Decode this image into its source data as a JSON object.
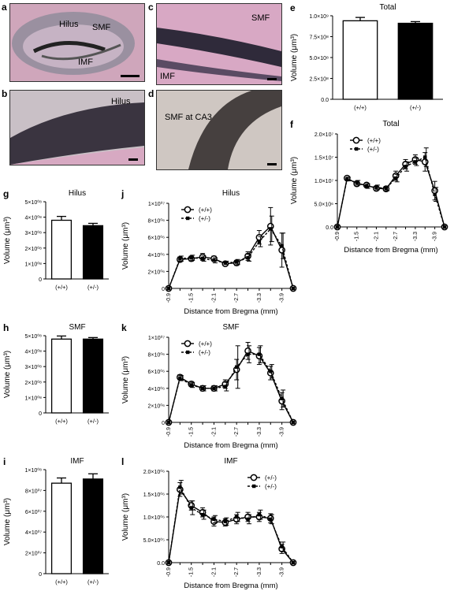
{
  "panels": {
    "a": {
      "letter": "a",
      "labels": {
        "hilus": "Hilus",
        "smf": "SMF",
        "imf": "IMF"
      }
    },
    "b": {
      "letter": "b",
      "labels": {
        "hilus": "Hilus"
      }
    },
    "c": {
      "letter": "c",
      "labels": {
        "smf": "SMF",
        "imf": "IMF"
      }
    },
    "d": {
      "letter": "d",
      "labels": {
        "smf_ca3": "SMF at CA3"
      }
    }
  },
  "colors": {
    "wt": "#ffffff",
    "het": "#000000",
    "stroke": "#000000"
  },
  "chart_data": [
    {
      "id": "e",
      "letter": "e",
      "type": "bar",
      "title": "Total",
      "ylabel": "Volume (μm³)",
      "categories": [
        "(+/+)",
        "(+/-)"
      ],
      "values": [
        940000000.0,
        910000000.0
      ],
      "errors": [
        40000000.0,
        20000000.0
      ],
      "ylim": [
        0,
        1000000000.0
      ],
      "yticks": [
        0,
        250000000.0,
        500000000.0,
        750000000.0,
        1000000000.0
      ],
      "yticklabels": [
        "0.0",
        "2.5×10⁸",
        "5.0×10⁸",
        "7.5×10⁸",
        "1.0×10⁹"
      ]
    },
    {
      "id": "f",
      "letter": "f",
      "type": "line",
      "title": "Total",
      "ylabel": "Volume (μm³)",
      "xlabel": "Distance from Bregma (mm)",
      "x": [
        -0.9,
        -1.2,
        -1.5,
        -1.8,
        -2.1,
        -2.4,
        -2.7,
        -3.0,
        -3.3,
        -3.6,
        -3.9,
        -4.2
      ],
      "xticks": [
        -0.9,
        -1.5,
        -2.1,
        -2.7,
        -3.3,
        -3.9
      ],
      "ylim": [
        0,
        20000000.0
      ],
      "yticks": [
        0,
        5000000.0,
        10000000.0,
        15000000.0,
        20000000.0
      ],
      "yticklabels": [
        "0.0",
        "5.0×10⁶",
        "1.0×10⁷",
        "1.5×10⁷",
        "2.0×10⁷"
      ],
      "series": [
        {
          "name": "(+/+)",
          "marker": "circle",
          "values": [
            0,
            10500000.0,
            9300000.0,
            9000000.0,
            8300000.0,
            8200000.0,
            11000000.0,
            13500000.0,
            14500000.0,
            14000000.0,
            7800000.0,
            0
          ],
          "errors": [
            0,
            400000.0,
            500000.0,
            500000.0,
            500000.0,
            500000.0,
            1000000.0,
            1000000.0,
            1000000.0,
            2000000.0,
            2000000.0,
            0
          ]
        },
        {
          "name": "(+/-)",
          "marker": "square",
          "values": [
            0,
            10300000.0,
            9500000.0,
            8800000.0,
            8500000.0,
            8300000.0,
            10500000.0,
            13000000.0,
            14000000.0,
            15000000.0,
            7000000.0,
            0
          ],
          "errors": [
            0,
            400000.0,
            500000.0,
            500000.0,
            500000.0,
            500000.0,
            800000.0,
            1000000.0,
            800000.0,
            2000000.0,
            1500000.0,
            0
          ]
        }
      ],
      "legend": "top-left"
    },
    {
      "id": "g",
      "letter": "g",
      "type": "bar",
      "title": "Hilus",
      "ylabel": "Volume (μm³)",
      "categories": [
        "(+/+)",
        "(+/-)"
      ],
      "values": [
        380000000.0,
        345000000.0
      ],
      "errors": [
        25000000.0,
        15000000.0
      ],
      "ylim": [
        0,
        500000000.0
      ],
      "yticks": [
        0,
        100000000.0,
        200000000.0,
        300000000.0,
        400000000.0,
        500000000.0
      ],
      "yticklabels": [
        "0",
        "1×10⁰⁸",
        "2×10⁰⁸",
        "3×10⁰⁸",
        "4×10⁰⁸",
        "5×10⁰⁸"
      ]
    },
    {
      "id": "j",
      "letter": "j",
      "type": "line",
      "title": "Hilus",
      "ylabel": "Volume (μm³)",
      "xlabel": "Distance from Bregma (mm)",
      "x": [
        -0.9,
        -1.2,
        -1.5,
        -1.8,
        -2.1,
        -2.4,
        -2.7,
        -3.0,
        -3.3,
        -3.6,
        -3.9,
        -4.2
      ],
      "xticks": [
        -0.9,
        -1.5,
        -2.1,
        -2.7,
        -3.3,
        -3.9
      ],
      "ylim": [
        0,
        10000000.0
      ],
      "yticks": [
        0,
        2000000.0,
        4000000.0,
        6000000.0,
        8000000.0,
        10000000.0
      ],
      "yticklabels": [
        "0",
        "2×10⁰⁶",
        "4×10⁰⁶",
        "6×10⁰⁶",
        "8×10⁰⁶",
        "1×10⁰⁷"
      ],
      "series": [
        {
          "name": "(+/+)",
          "marker": "circle",
          "values": [
            0,
            3400000.0,
            3500000.0,
            3700000.0,
            3500000.0,
            2900000.0,
            3000000.0,
            3800000.0,
            6000000.0,
            7300000.0,
            4500000.0,
            0
          ],
          "errors": [
            0,
            300000.0,
            300000.0,
            400000.0,
            300000.0,
            200000.0,
            300000.0,
            500000.0,
            800000.0,
            2200000.0,
            2000000.0,
            0
          ]
        },
        {
          "name": "(+/-)",
          "marker": "square",
          "values": [
            0,
            3500000.0,
            3600000.0,
            3500000.0,
            3300000.0,
            3000000.0,
            3100000.0,
            3600000.0,
            5500000.0,
            7000000.0,
            5000000.0,
            0
          ],
          "errors": [
            0,
            300000.0,
            300000.0,
            300000.0,
            300000.0,
            200000.0,
            300000.0,
            400000.0,
            600000.0,
            1500000.0,
            1500000.0,
            0
          ]
        }
      ],
      "legend": "top-left"
    },
    {
      "id": "h",
      "letter": "h",
      "type": "bar",
      "title": "SMF",
      "ylabel": "Volume (μm³)",
      "categories": [
        "(+/+)",
        "(+/-)"
      ],
      "values": [
        478000000.0,
        478000000.0
      ],
      "errors": [
        20000000.0,
        10000000.0
      ],
      "ylim": [
        0,
        500000000.0
      ],
      "yticks": [
        0,
        100000000.0,
        200000000.0,
        300000000.0,
        400000000.0,
        500000000.0
      ],
      "yticklabels": [
        "0",
        "1×10⁰⁸",
        "2×10⁰⁸",
        "3×10⁰⁸",
        "4×10⁰⁸",
        "5×10⁰⁸"
      ]
    },
    {
      "id": "k",
      "letter": "k",
      "type": "line",
      "title": "SMF",
      "ylabel": "Volume (μm³)",
      "xlabel": "Distance from Bregma (mm)",
      "x": [
        -0.9,
        -1.2,
        -1.5,
        -1.8,
        -2.1,
        -2.4,
        -2.7,
        -3.0,
        -3.3,
        -3.6,
        -3.9,
        -4.2
      ],
      "xticks": [
        -0.9,
        -1.5,
        -2.1,
        -2.7,
        -3.3,
        -3.9
      ],
      "ylim": [
        0,
        10000000.0
      ],
      "yticks": [
        0,
        2000000.0,
        4000000.0,
        6000000.0,
        8000000.0,
        10000000.0
      ],
      "yticklabels": [
        "0",
        "2×10⁰⁶",
        "4×10⁰⁶",
        "6×10⁰⁶",
        "8×10⁰⁶",
        "1×10⁰⁷"
      ],
      "series": [
        {
          "name": "(+/+)",
          "marker": "circle",
          "values": [
            0,
            5300000.0,
            4500000.0,
            4000000.0,
            4000000.0,
            4500000.0,
            6200000.0,
            8400000.0,
            7800000.0,
            5800000.0,
            2500000.0,
            0
          ],
          "errors": [
            0,
            300000.0,
            300000.0,
            300000.0,
            300000.0,
            500000.0,
            1200000.0,
            1000000.0,
            1000000.0,
            800000.0,
            1000000.0,
            0
          ]
        },
        {
          "name": "(+/-)",
          "marker": "square",
          "values": [
            0,
            5200000.0,
            4400000.0,
            4000000.0,
            4000000.0,
            4200000.0,
            6500000.0,
            8000000.0,
            8000000.0,
            6000000.0,
            2800000.0,
            0
          ],
          "errors": [
            0,
            300000.0,
            300000.0,
            300000.0,
            300000.0,
            500000.0,
            2500000.0,
            1000000.0,
            1000000.0,
            800000.0,
            1000000.0,
            0
          ]
        }
      ],
      "legend": "top-left"
    },
    {
      "id": "i",
      "letter": "i",
      "type": "bar",
      "title": "IMF",
      "ylabel": "Volume (μm³)",
      "categories": [
        "(+/+)",
        "(+/-)"
      ],
      "values": [
        87000000.0,
        91000000.0
      ],
      "errors": [
        5000000.0,
        5000000.0
      ],
      "ylim": [
        0,
        100000000.0
      ],
      "yticks": [
        0,
        20000000.0,
        40000000.0,
        60000000.0,
        80000000.0,
        100000000.0
      ],
      "yticklabels": [
        "0",
        "2×10⁰⁷",
        "4×10⁰⁷",
        "6×10⁰⁷",
        "8×10⁰⁷",
        "1×10⁰⁸"
      ]
    },
    {
      "id": "l",
      "letter": "l",
      "type": "line",
      "title": "IMF",
      "ylabel": "Volume (μm³)",
      "xlabel": "Distance from Bregma (mm)",
      "x": [
        -0.9,
        -1.2,
        -1.5,
        -1.8,
        -2.1,
        -2.4,
        -2.7,
        -3.0,
        -3.3,
        -3.6,
        -3.9,
        -4.2
      ],
      "xticks": [
        -0.9,
        -1.5,
        -2.1,
        -2.7,
        -3.3,
        -3.9
      ],
      "ylim": [
        0,
        2000000.0
      ],
      "yticks": [
        0,
        500000.0,
        1000000.0,
        1500000.0,
        2000000.0
      ],
      "yticklabels": [
        "0.0",
        "5.0×10⁰⁵",
        "1.0×10⁰⁶",
        "1.5×10⁰⁶",
        "2.0×10⁰⁶"
      ],
      "series": [
        {
          "name": "(+/-)",
          "marker": "circle",
          "values": [
            0,
            1600000.0,
            1250000.0,
            1100000.0,
            900000.0,
            880000.0,
            950000.0,
            1000000.0,
            1000000.0,
            970000.0,
            300000.0,
            0
          ],
          "errors": [
            0,
            150000.0,
            100000.0,
            100000.0,
            100000.0,
            80000.0,
            100000.0,
            100000.0,
            100000.0,
            100000.0,
            100000.0,
            0
          ]
        },
        {
          "name": "(+/-)",
          "marker": "square",
          "values": [
            0,
            1650000.0,
            1200000.0,
            1050000.0,
            950000.0,
            900000.0,
            1000000.0,
            950000.0,
            1050000.0,
            950000.0,
            350000.0,
            0
          ],
          "errors": [
            0,
            150000.0,
            150000.0,
            100000.0,
            80000.0,
            80000.0,
            100000.0,
            100000.0,
            100000.0,
            100000.0,
            100000.0,
            0
          ]
        }
      ],
      "legend": "top-right"
    }
  ]
}
